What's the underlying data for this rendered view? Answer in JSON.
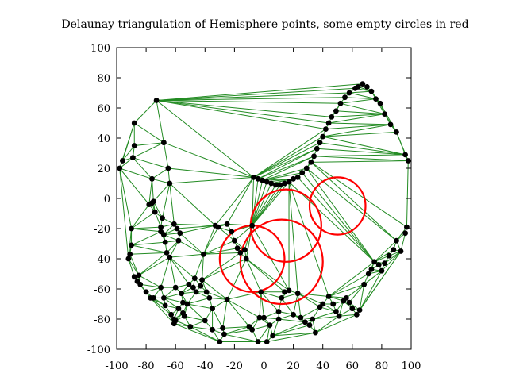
{
  "chart_data": {
    "type": "scatter",
    "title": "Delaunay triangulation of Hemisphere points, some empty circles in red",
    "xlabel": "",
    "ylabel": "",
    "xlim": [
      -100,
      100
    ],
    "ylim": [
      -100,
      100
    ],
    "x_ticks": [
      -100,
      -80,
      -60,
      -40,
      -20,
      0,
      20,
      40,
      60,
      80,
      100
    ],
    "y_ticks": [
      -100,
      -80,
      -60,
      -40,
      -20,
      0,
      20,
      40,
      60,
      80,
      100
    ],
    "x_tick_labels": [
      "-100",
      "-80",
      "-60",
      "-40",
      "-20",
      "0",
      "20",
      "40",
      "60",
      "80",
      "100"
    ],
    "y_tick_labels": [
      "-100",
      "-80",
      "-60",
      "-40",
      "-20",
      "0",
      "20",
      "40",
      "60",
      "80",
      "100"
    ],
    "grid": false,
    "colors": {
      "edges": "#228b22",
      "points": "#000000",
      "circles": "#ff0000"
    },
    "points": [
      [
        -98,
        20
      ],
      [
        -96,
        25
      ],
      [
        -90,
        -20
      ],
      [
        -92,
        -40
      ],
      [
        -91,
        -37
      ],
      [
        -90,
        -31
      ],
      [
        -88,
        -52
      ],
      [
        -86,
        -55
      ],
      [
        -85,
        -51
      ],
      [
        -89,
        27
      ],
      [
        -88,
        35
      ],
      [
        -88,
        50
      ],
      [
        -84,
        -57
      ],
      [
        -80,
        -62
      ],
      [
        -78,
        -4
      ],
      [
        -76,
        -3
      ],
      [
        -77,
        -66
      ],
      [
        -75,
        -2
      ],
      [
        -76,
        13
      ],
      [
        -75,
        -66
      ],
      [
        -74,
        -9
      ],
      [
        -73,
        65
      ],
      [
        -70,
        -19
      ],
      [
        -70,
        -22
      ],
      [
        -70,
        -59
      ],
      [
        -69,
        -13
      ],
      [
        -68,
        -24
      ],
      [
        -68,
        -66
      ],
      [
        -67,
        -71
      ],
      [
        -67,
        -29
      ],
      [
        -66,
        -36
      ],
      [
        -64,
        -39
      ],
      [
        -68,
        37
      ],
      [
        -65,
        20
      ],
      [
        -64,
        10
      ],
      [
        -63,
        -77
      ],
      [
        -61,
        -83
      ],
      [
        -60,
        -81
      ],
      [
        -60,
        -59
      ],
      [
        -61,
        -17
      ],
      [
        -61,
        -80
      ],
      [
        -59,
        -20
      ],
      [
        -58,
        -73
      ],
      [
        -57,
        -23
      ],
      [
        -58,
        -28
      ],
      [
        -56,
        -63
      ],
      [
        -55,
        -69
      ],
      [
        -55,
        -76
      ],
      [
        -54,
        -78
      ],
      [
        -52,
        -70
      ],
      [
        -51,
        -57
      ],
      [
        -50,
        -85
      ],
      [
        -48,
        -59
      ],
      [
        -47,
        -53
      ],
      [
        -46,
        -62
      ],
      [
        -43,
        -58
      ],
      [
        -42,
        -54
      ],
      [
        -41,
        -37
      ],
      [
        -40,
        -81
      ],
      [
        -39,
        -62
      ],
      [
        -37,
        -66
      ],
      [
        -35,
        -87
      ],
      [
        -35,
        -73
      ],
      [
        -33,
        -18
      ],
      [
        -31,
        -19
      ],
      [
        -30,
        -95
      ],
      [
        -28,
        -86
      ],
      [
        -27,
        -90
      ],
      [
        -25,
        -67
      ],
      [
        -25,
        -17
      ],
      [
        -22,
        -22
      ],
      [
        -20,
        -28
      ],
      [
        -18,
        -33
      ],
      [
        -16,
        -36
      ],
      [
        -13,
        -34
      ],
      [
        -12,
        -40
      ],
      [
        -10,
        -85
      ],
      [
        -8,
        -18
      ],
      [
        -8,
        -87
      ],
      [
        -4,
        -95
      ],
      [
        -3,
        -79
      ],
      [
        -2,
        -62
      ],
      [
        0,
        -79
      ],
      [
        2,
        -95
      ],
      [
        4,
        -84
      ],
      [
        6,
        -91
      ],
      [
        10,
        -75
      ],
      [
        10,
        -80
      ],
      [
        12,
        -66
      ],
      [
        14,
        -62
      ],
      [
        17,
        -61
      ],
      [
        20,
        -77
      ],
      [
        23,
        -63
      ],
      [
        25,
        -79
      ],
      [
        28,
        -82
      ],
      [
        31,
        -84
      ],
      [
        33,
        -80
      ],
      [
        35,
        -89
      ],
      [
        38,
        -72
      ],
      [
        40,
        -70
      ],
      [
        44,
        -65
      ],
      [
        47,
        -70
      ],
      [
        49,
        -75
      ],
      [
        51,
        -78
      ],
      [
        54,
        -68
      ],
      [
        56,
        -66
      ],
      [
        58,
        -69
      ],
      [
        60,
        -73
      ],
      [
        63,
        -77
      ],
      [
        65,
        -74
      ],
      [
        68,
        -57
      ],
      [
        71,
        -50
      ],
      [
        73,
        -47
      ],
      [
        75,
        -42
      ],
      [
        78,
        -44
      ],
      [
        80,
        -48
      ],
      [
        82,
        -43
      ],
      [
        85,
        -38
      ],
      [
        88,
        -34
      ],
      [
        90,
        -28
      ],
      [
        93,
        -35
      ],
      [
        96,
        -23
      ],
      [
        97,
        -19
      ],
      [
        98,
        25
      ],
      [
        96,
        29
      ],
      [
        90,
        44
      ],
      [
        86,
        49
      ],
      [
        82,
        56
      ],
      [
        79,
        63
      ],
      [
        76,
        66
      ],
      [
        73,
        71
      ],
      [
        70,
        74
      ],
      [
        67,
        76
      ],
      [
        64,
        74
      ],
      [
        62,
        73
      ],
      [
        58,
        70
      ],
      [
        55,
        67
      ],
      [
        52,
        63
      ],
      [
        49,
        58
      ],
      [
        46,
        54
      ],
      [
        44,
        50
      ],
      [
        42,
        46
      ],
      [
        40,
        41
      ],
      [
        38,
        37
      ],
      [
        36,
        33
      ],
      [
        34,
        28
      ],
      [
        32,
        24
      ],
      [
        29,
        20
      ],
      [
        26,
        17
      ],
      [
        23,
        14
      ],
      [
        20,
        13
      ],
      [
        17,
        11
      ],
      [
        14,
        10
      ],
      [
        11,
        9
      ],
      [
        8,
        9
      ],
      [
        5,
        10
      ],
      [
        2,
        11
      ],
      [
        -1,
        12
      ],
      [
        -4,
        13
      ],
      [
        -7,
        14
      ]
    ],
    "edge_sample_note": "",
    "circles": [
      {
        "cx": 15,
        "cy": -18,
        "r": 24
      },
      {
        "cx": 50,
        "cy": -5,
        "r": 19
      },
      {
        "cx": -8,
        "cy": -40,
        "r": 22
      },
      {
        "cx": 12,
        "cy": -42,
        "r": 28
      }
    ]
  }
}
